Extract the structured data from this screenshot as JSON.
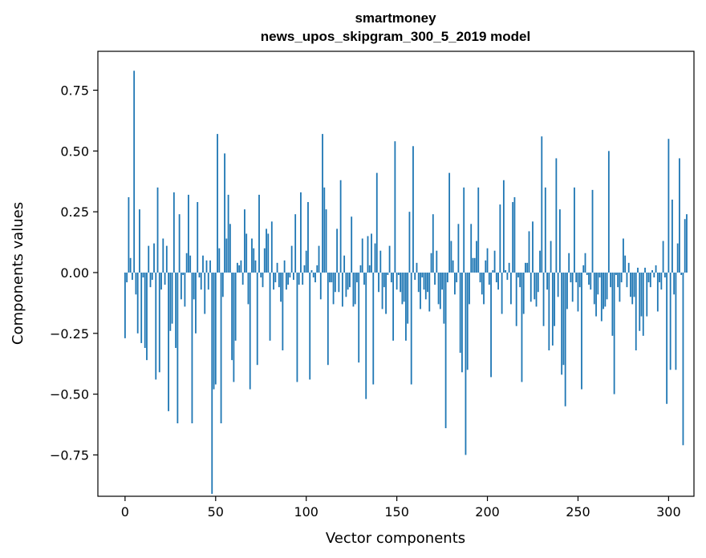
{
  "chart_data": {
    "type": "bar",
    "title_line1": "smartmoney",
    "title_line2": "news_upos_skipgram_300_5_2019 model",
    "xlabel": "Vector components",
    "ylabel": "Components values",
    "xlim": [
      -15,
      314
    ],
    "ylim": [
      -0.92,
      0.91
    ],
    "xticks": [
      0,
      50,
      100,
      150,
      200,
      250,
      300
    ],
    "yticks": [
      -0.75,
      -0.5,
      -0.25,
      0.0,
      0.25,
      0.5,
      0.75
    ],
    "ytick_labels": [
      "−0.75",
      "−0.50",
      "−0.25",
      "0.00",
      "0.25",
      "0.50",
      "0.75"
    ],
    "bar_color": "#1f77b4",
    "values": [
      -0.27,
      -0.04,
      0.31,
      0.06,
      -0.03,
      0.83,
      -0.09,
      -0.25,
      0.26,
      -0.29,
      -0.02,
      -0.31,
      -0.36,
      0.11,
      -0.06,
      -0.03,
      0.12,
      -0.44,
      0.35,
      -0.41,
      -0.07,
      0.14,
      -0.05,
      0.11,
      -0.57,
      -0.24,
      -0.21,
      0.33,
      -0.31,
      -0.62,
      0.24,
      -0.11,
      -0.01,
      -0.14,
      0.08,
      0.32,
      0.07,
      -0.62,
      -0.11,
      -0.25,
      0.29,
      -0.02,
      -0.07,
      0.07,
      -0.17,
      0.05,
      -0.07,
      0.05,
      -0.91,
      -0.48,
      -0.46,
      0.57,
      0.1,
      -0.62,
      -0.1,
      0.49,
      0.14,
      0.32,
      0.2,
      -0.36,
      -0.45,
      -0.28,
      0.04,
      0.03,
      0.05,
      -0.05,
      0.26,
      0.16,
      -0.13,
      -0.48,
      0.14,
      0.1,
      0.05,
      -0.38,
      0.32,
      -0.02,
      -0.06,
      0.1,
      0.18,
      0.16,
      -0.28,
      0.21,
      -0.07,
      -0.04,
      0.04,
      -0.06,
      -0.12,
      -0.32,
      0.05,
      -0.07,
      -0.05,
      -0.02,
      0.11,
      -0.03,
      0.24,
      -0.45,
      -0.05,
      0.33,
      -0.05,
      0.03,
      0.09,
      0.29,
      -0.44,
      0.01,
      -0.02,
      -0.04,
      0.03,
      0.11,
      -0.11,
      0.57,
      0.35,
      0.26,
      -0.38,
      -0.04,
      -0.04,
      -0.13,
      -0.08,
      0.18,
      -0.08,
      0.38,
      -0.14,
      0.07,
      -0.1,
      -0.07,
      -0.06,
      0.23,
      -0.14,
      -0.13,
      -0.04,
      -0.37,
      0.03,
      0.14,
      -0.05,
      -0.52,
      0.15,
      0.03,
      0.16,
      -0.46,
      0.12,
      0.41,
      -0.08,
      0.09,
      -0.15,
      -0.06,
      -0.17,
      -0.01,
      0.11,
      -0.04,
      -0.28,
      0.54,
      -0.07,
      -0.01,
      -0.08,
      -0.13,
      -0.12,
      -0.28,
      -0.21,
      0.25,
      -0.46,
      0.52,
      -0.03,
      0.04,
      -0.08,
      -0.15,
      -0.02,
      -0.07,
      -0.11,
      -0.08,
      -0.16,
      0.08,
      0.24,
      -0.05,
      0.09,
      -0.13,
      -0.15,
      -0.07,
      -0.21,
      -0.64,
      -0.04,
      0.41,
      0.13,
      0.05,
      -0.09,
      -0.04,
      0.2,
      -0.33,
      -0.41,
      0.35,
      -0.75,
      -0.4,
      -0.13,
      0.2,
      0.06,
      0.06,
      0.13,
      0.35,
      -0.04,
      -0.09,
      -0.13,
      0.05,
      0.1,
      -0.05,
      -0.43,
      0.01,
      0.09,
      -0.04,
      -0.07,
      0.28,
      -0.17,
      0.38,
      0.01,
      -0.03,
      0.04,
      -0.13,
      0.29,
      0.31,
      -0.22,
      -0.02,
      -0.06,
      -0.45,
      -0.17,
      0.04,
      0.04,
      0.17,
      -0.12,
      0.21,
      -0.11,
      -0.14,
      -0.08,
      0.09,
      0.56,
      -0.22,
      0.35,
      -0.07,
      -0.32,
      0.13,
      -0.3,
      -0.22,
      0.47,
      -0.1,
      0.26,
      -0.42,
      -0.38,
      -0.55,
      -0.15,
      0.08,
      -0.04,
      -0.12,
      0.35,
      -0.04,
      -0.16,
      -0.06,
      -0.48,
      0.03,
      0.08,
      -0.01,
      -0.05,
      -0.07,
      0.34,
      -0.13,
      -0.18,
      -0.09,
      -0.02,
      -0.2,
      -0.15,
      -0.14,
      -0.11,
      0.5,
      -0.06,
      -0.26,
      -0.5,
      -0.01,
      -0.06,
      -0.12,
      -0.04,
      0.14,
      0.07,
      -0.06,
      0.04,
      -0.1,
      -0.13,
      -0.1,
      -0.32,
      0.02,
      -0.24,
      -0.18,
      -0.26,
      0.02,
      -0.18,
      -0.04,
      -0.06,
      0.01,
      -0.02,
      0.03,
      -0.16,
      -0.04,
      -0.07,
      0.13,
      -0.02,
      -0.54,
      0.55,
      -0.4,
      0.3,
      -0.09,
      -0.4,
      0.12,
      0.47,
      -0.01,
      -0.71,
      0.22,
      0.24
    ]
  }
}
